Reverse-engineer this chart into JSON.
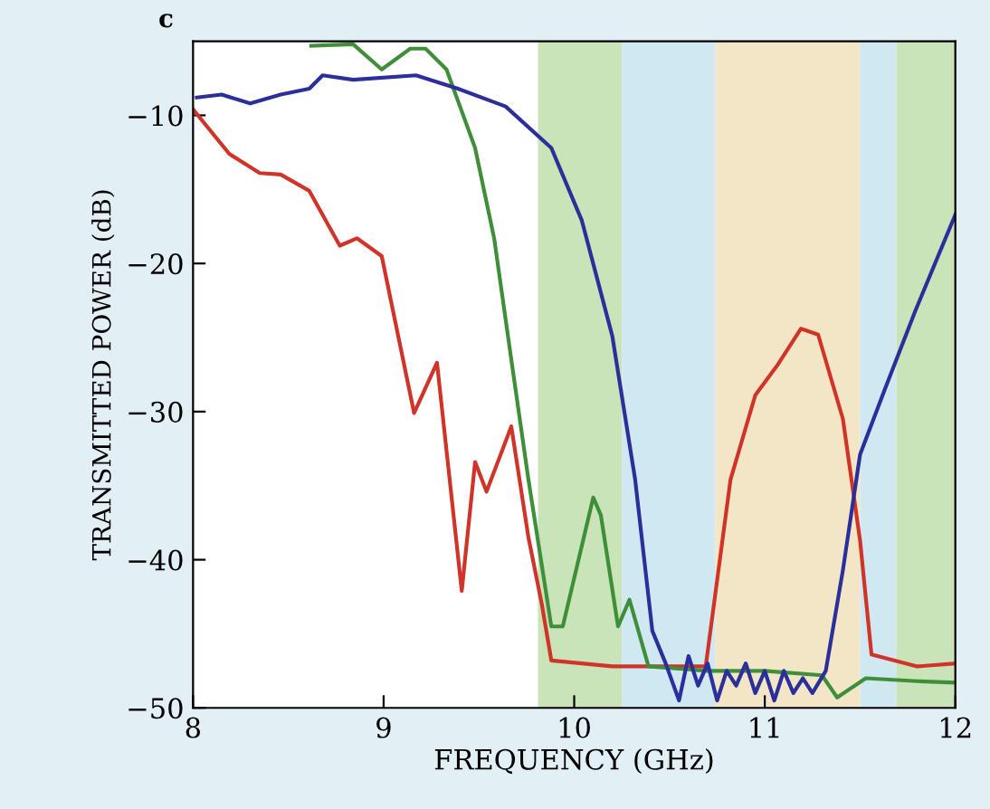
{
  "chart_data": {
    "type": "line",
    "xlabel": "FREQUENCY (GHz)",
    "ylabel": "TRANSMITTED POWER (dB)",
    "annotations": [
      "c"
    ],
    "xlim": [
      8,
      12
    ],
    "ylim": [
      -50,
      -5
    ],
    "xticks": [
      8,
      9,
      10,
      11,
      12
    ],
    "yticks": [
      -50,
      -40,
      -30,
      -20,
      -10
    ],
    "grid": false,
    "legend": false,
    "bands": [
      {
        "axis": "x",
        "from": 9.81,
        "to": 10.25,
        "color": "#c9e4b9"
      },
      {
        "axis": "x",
        "from": 10.25,
        "to": 10.74,
        "color": "#cfe8f1"
      },
      {
        "axis": "x",
        "from": 10.74,
        "to": 11.5,
        "color": "#f2e6c6"
      },
      {
        "axis": "x",
        "from": 11.5,
        "to": 11.69,
        "color": "#cfe8f1"
      },
      {
        "axis": "x",
        "from": 11.69,
        "to": 12,
        "color": "#c9e4b9"
      }
    ],
    "series": [
      {
        "color": "#d03428",
        "x": [
          8.0,
          8.19,
          8.35,
          8.46,
          8.61,
          8.77,
          8.86,
          8.99,
          9.16,
          9.28,
          9.41,
          9.48,
          9.54,
          9.67,
          9.76,
          9.83,
          9.88,
          10.2,
          10.5,
          10.69,
          10.82,
          10.95,
          11.07,
          11.19,
          11.28,
          11.41,
          11.5,
          11.56,
          11.8,
          12.0
        ],
        "values": [
          -9.6,
          -12.6,
          -13.9,
          -14.0,
          -15.1,
          -18.8,
          -18.3,
          -19.5,
          -30.1,
          -26.7,
          -42.1,
          -33.4,
          -35.4,
          -31.0,
          -38.5,
          -43.0,
          -46.8,
          -47.2,
          -47.2,
          -47.2,
          -34.6,
          -28.9,
          -26.8,
          -24.4,
          -24.8,
          -30.5,
          -38.7,
          -46.4,
          -47.2,
          -47.0
        ]
      },
      {
        "color": "#3f8f3a",
        "x": [
          8.62,
          8.84,
          8.99,
          9.14,
          9.22,
          9.33,
          9.48,
          9.58,
          9.67,
          9.76,
          9.88,
          9.94,
          10.1,
          10.14,
          10.23,
          10.29,
          10.39,
          10.7,
          11.0,
          11.3,
          11.38,
          11.53,
          11.8,
          12.0
        ],
        "values": [
          -5.3,
          -5.2,
          -6.9,
          -5.5,
          -5.5,
          -6.9,
          -12.2,
          -18.3,
          -26.5,
          -34.6,
          -44.5,
          -44.5,
          -35.8,
          -37.0,
          -44.5,
          -42.7,
          -47.2,
          -47.5,
          -47.5,
          -47.8,
          -49.3,
          -48.0,
          -48.2,
          -48.3
        ]
      },
      {
        "color": "#2a2f9a",
        "x": [
          8.02,
          8.15,
          8.3,
          8.46,
          8.61,
          8.68,
          8.84,
          9.17,
          9.39,
          9.64,
          9.88,
          10.04,
          10.2,
          10.32,
          10.41,
          10.48,
          10.55,
          10.6,
          10.65,
          10.7,
          10.75,
          10.8,
          10.85,
          10.9,
          10.95,
          11.0,
          11.05,
          11.1,
          11.15,
          11.2,
          11.25,
          11.32,
          11.41,
          11.5,
          11.63,
          11.79,
          12.0
        ],
        "values": [
          -8.8,
          -8.6,
          -9.2,
          -8.6,
          -8.2,
          -7.3,
          -7.6,
          -7.3,
          -8.2,
          -9.4,
          -12.2,
          -17.1,
          -24.9,
          -34.6,
          -44.8,
          -47.0,
          -49.5,
          -46.5,
          -48.5,
          -47.0,
          -49.5,
          -47.5,
          -48.5,
          -47.0,
          -49.0,
          -47.5,
          -49.5,
          -47.5,
          -49.0,
          -48.0,
          -49.0,
          -47.5,
          -40.7,
          -32.9,
          -28.5,
          -23.2,
          -16.7
        ]
      }
    ]
  }
}
